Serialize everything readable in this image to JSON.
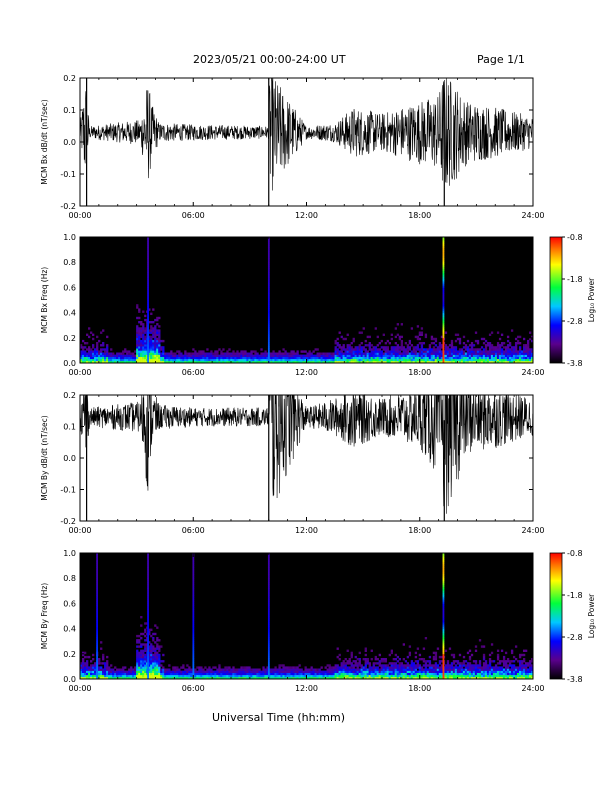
{
  "header": {
    "title": "2023/05/21  00:00-24:00 UT",
    "page": "Page 1/1"
  },
  "xaxis": {
    "label": "Universal Time (hh:mm)",
    "ticks": [
      "00:00",
      "06:00",
      "12:00",
      "18:00",
      "24:00"
    ],
    "range_hours": [
      0,
      24
    ]
  },
  "colorbar": {
    "label": "Log₁₀ Power",
    "ticks": [
      "-0.8",
      "-1.8",
      "-2.8",
      "-3.8"
    ],
    "range": [
      -3.8,
      -0.8
    ]
  },
  "chart_data": [
    {
      "type": "line",
      "ylabel": "MCM Bx dB/dt (nT/sec)",
      "ylim": [
        -0.2,
        0.2
      ],
      "yticks": [
        "0.2",
        "0.1",
        "0.0",
        "-0.1",
        "-0.2"
      ],
      "baseline": 0.03,
      "x": [
        0,
        0.3,
        0.5,
        3.2,
        3.6,
        3.8,
        4.2,
        6.0,
        10.0,
        10.05,
        12.0,
        13.5,
        14.5,
        16.0,
        18.0,
        19.0,
        19.3,
        20.5,
        22.0,
        24.0
      ],
      "amplitude": [
        0.02,
        0.18,
        0.02,
        0.04,
        0.17,
        0.09,
        0.03,
        0.025,
        0.02,
        0.2,
        0.02,
        0.03,
        0.08,
        0.06,
        0.1,
        0.12,
        0.2,
        0.1,
        0.08,
        0.05
      ],
      "notes": "Time series of dB/dt, quiet near 0.03 with bursts around 03:30, spike at 10:00 and 19:20, elevated activity after 13:30"
    },
    {
      "type": "heatmap",
      "ylabel": "MCM Bx Freq (Hz)",
      "ylim": [
        0,
        1.0
      ],
      "yticks": [
        "1.0",
        "0.8",
        "0.6",
        "0.4",
        "0.2",
        "0.0"
      ],
      "zlim": [
        -3.8,
        -0.8
      ],
      "bright_times_hours": [
        3.6,
        10.0,
        19.25
      ],
      "active_periods_hours": [
        [
          0.0,
          1.5
        ],
        [
          3.0,
          4.5
        ],
        [
          13.5,
          24.0
        ]
      ]
    },
    {
      "type": "line",
      "ylabel": "MCM By dB/dt (nT/sec)",
      "ylim": [
        -0.2,
        0.2
      ],
      "yticks": [
        "0.2",
        "0.1",
        "0.0",
        "-0.1",
        "-0.2"
      ],
      "baseline": 0.13,
      "x": [
        0,
        0.3,
        0.5,
        3.2,
        3.6,
        3.8,
        4.2,
        6.0,
        10.0,
        10.05,
        12.0,
        13.5,
        14.5,
        16.0,
        18.0,
        19.0,
        19.3,
        20.5,
        22.0,
        24.0
      ],
      "amplitude": [
        0.03,
        0.15,
        0.03,
        0.05,
        0.25,
        0.1,
        0.04,
        0.03,
        0.03,
        0.33,
        0.03,
        0.06,
        0.1,
        0.06,
        0.1,
        0.2,
        0.33,
        0.12,
        0.1,
        0.06
      ],
      "notes": "Time series of dB/dt, quiet near 0.13 with dip near 03:40, spike at 10:00, deep dips near 19:20, active after 13:30"
    },
    {
      "type": "heatmap",
      "ylabel": "MCM By Freq (Hz)",
      "ylim": [
        0,
        1.0
      ],
      "yticks": [
        "1.0",
        "0.8",
        "0.6",
        "0.4",
        "0.2",
        "0.0"
      ],
      "zlim": [
        -3.8,
        -0.8
      ],
      "bright_times_hours": [
        0.9,
        3.6,
        6.0,
        10.0,
        19.25
      ],
      "active_periods_hours": [
        [
          0.0,
          1.5
        ],
        [
          3.0,
          4.5
        ],
        [
          13.5,
          24.0
        ]
      ]
    }
  ]
}
